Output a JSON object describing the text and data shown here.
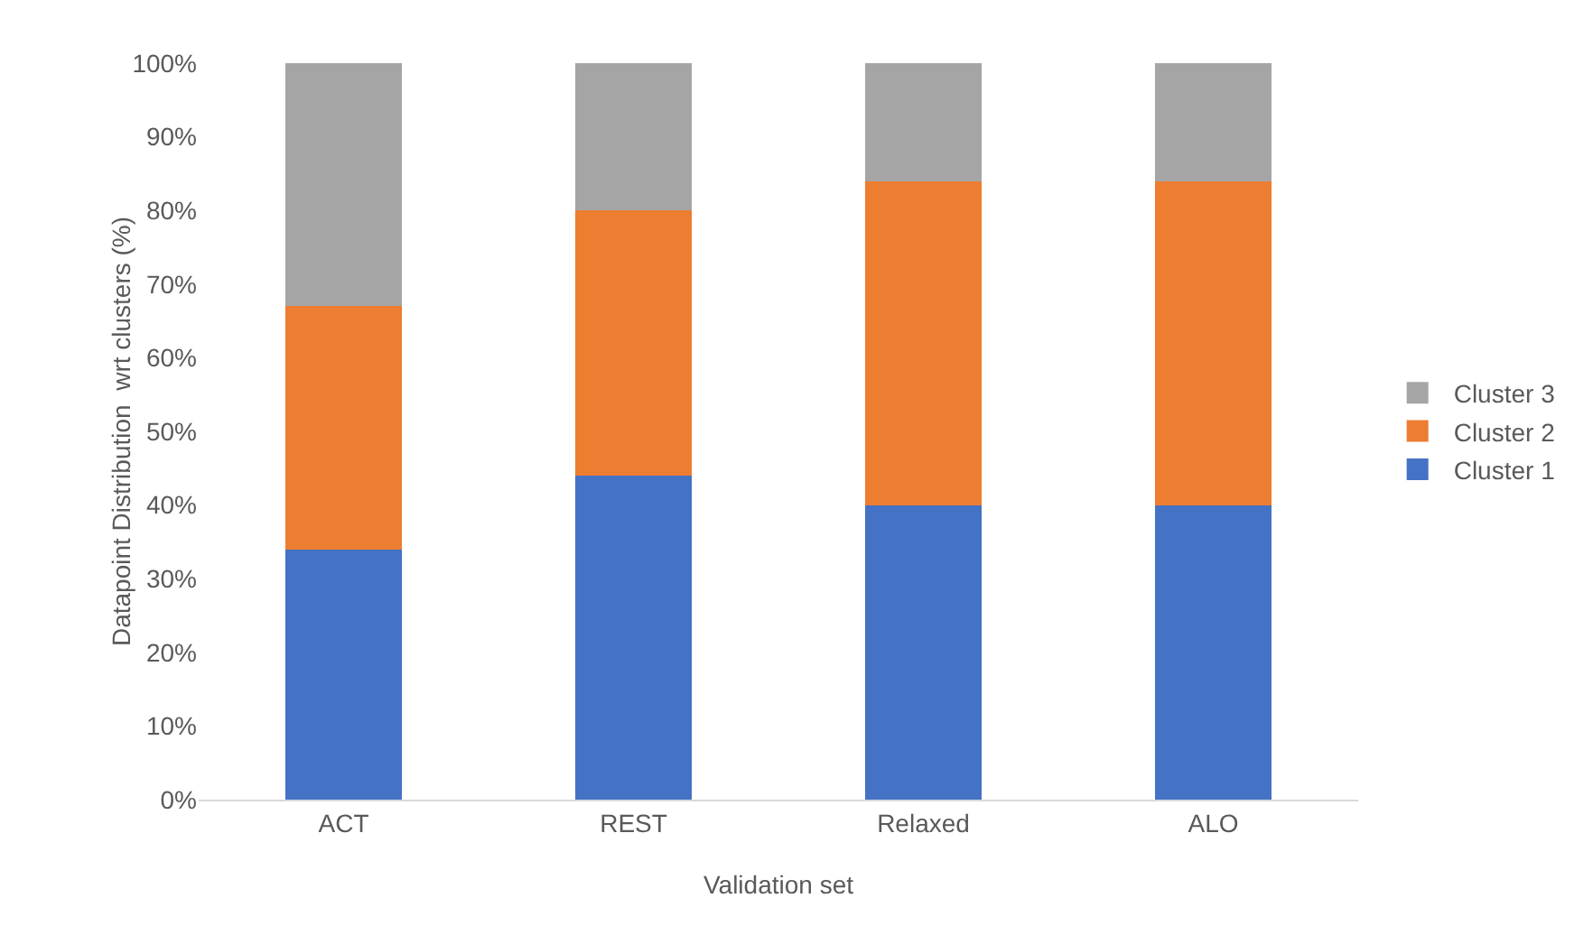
{
  "chart_data": {
    "type": "bar",
    "stacked": true,
    "xlabel": "Validation set",
    "ylabel": "Datapoint Distribution  wrt clusters (%)",
    "categories": [
      "ACT",
      "REST",
      "Relaxed",
      "ALO"
    ],
    "series": [
      {
        "name": "Cluster 1",
        "color": "#4472c4",
        "values": [
          34,
          44,
          40,
          40
        ]
      },
      {
        "name": "Cluster 2",
        "color": "#ed7d31",
        "values": [
          33,
          36,
          44,
          44
        ]
      },
      {
        "name": "Cluster 3",
        "color": "#a5a5a5",
        "values": [
          33,
          20,
          16,
          16
        ]
      }
    ],
    "ylim": [
      0,
      100
    ],
    "yticks": [
      {
        "value": 0,
        "label": "0%"
      },
      {
        "value": 10,
        "label": "10%"
      },
      {
        "value": 20,
        "label": "20%"
      },
      {
        "value": 30,
        "label": "30%"
      },
      {
        "value": 40,
        "label": "40%"
      },
      {
        "value": 50,
        "label": "50%"
      },
      {
        "value": 60,
        "label": "60%"
      },
      {
        "value": 70,
        "label": "70%"
      },
      {
        "value": 80,
        "label": "80%"
      },
      {
        "value": 90,
        "label": "90%"
      },
      {
        "value": 100,
        "label": "100%"
      }
    ],
    "grid": false,
    "legend": "right"
  }
}
